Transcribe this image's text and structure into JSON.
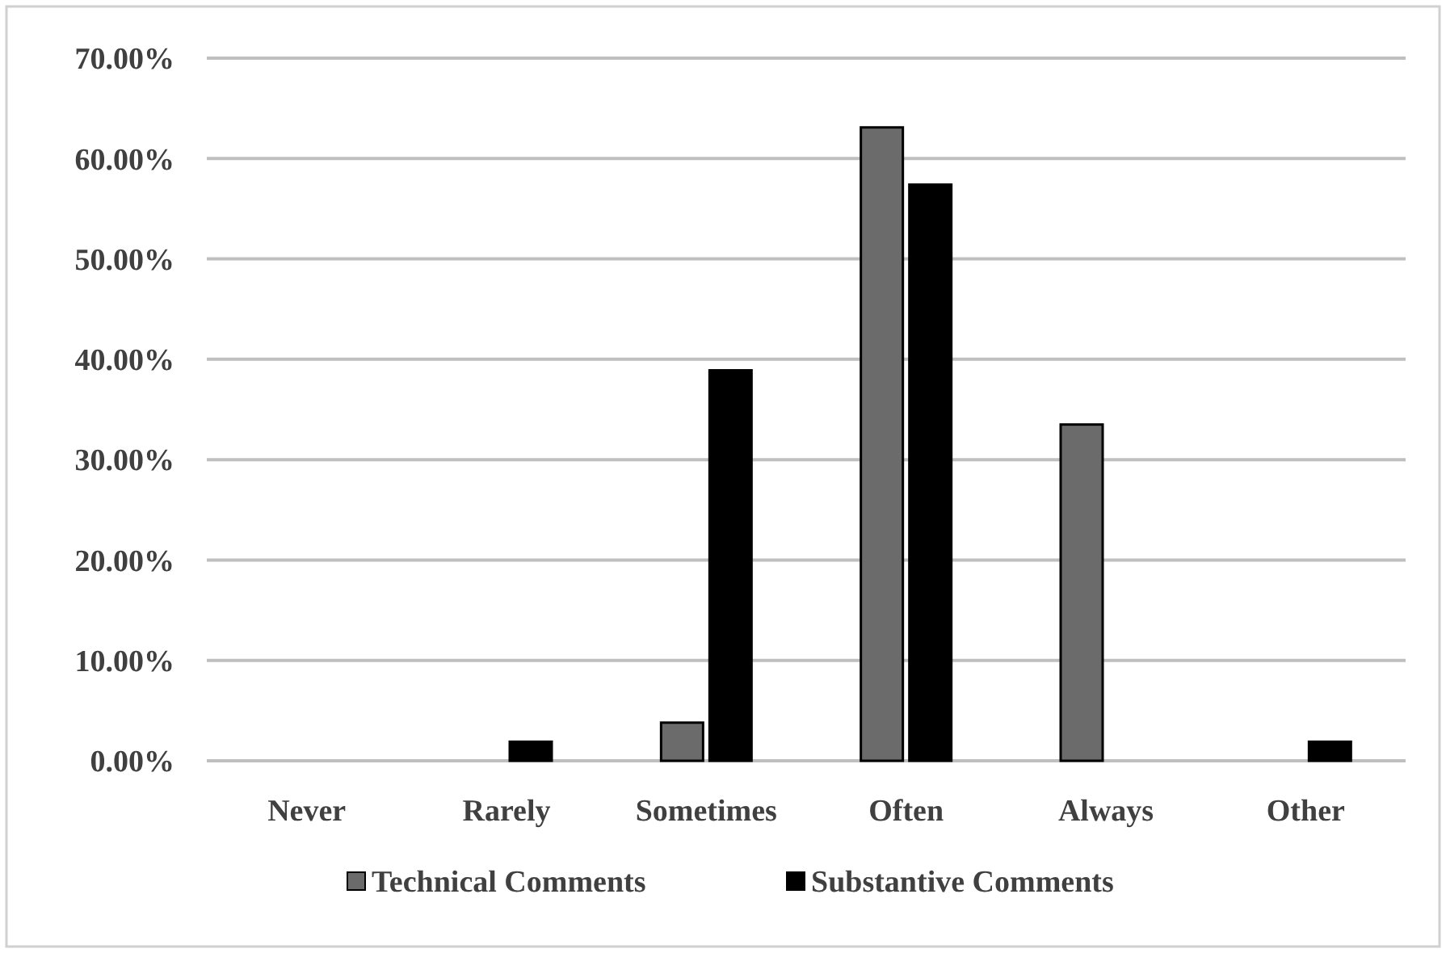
{
  "chart_data": {
    "type": "bar",
    "categories": [
      "Never",
      "Rarely",
      "Sometimes",
      "Often",
      "Always",
      "Other"
    ],
    "series": [
      {
        "name": "Technical Comments",
        "color": "#6b6b6b",
        "values": [
          0,
          0,
          3.8,
          63.1,
          33.5,
          0
        ]
      },
      {
        "name": "Substantive Comments",
        "color": "#000000",
        "values": [
          0,
          1.9,
          38.9,
          57.4,
          0,
          1.9
        ]
      }
    ],
    "ylim": [
      0,
      70
    ],
    "yticks": [
      {
        "value": 0,
        "label": "0.00%"
      },
      {
        "value": 10,
        "label": "10.00%"
      },
      {
        "value": 20,
        "label": "20.00%"
      },
      {
        "value": 30,
        "label": "30.00%"
      },
      {
        "value": 40,
        "label": "40.00%"
      },
      {
        "value": 50,
        "label": "50.00%"
      },
      {
        "value": 60,
        "label": "60.00%"
      },
      {
        "value": 70,
        "label": "70.00%"
      }
    ],
    "grid": "y",
    "legend": "bottom"
  }
}
